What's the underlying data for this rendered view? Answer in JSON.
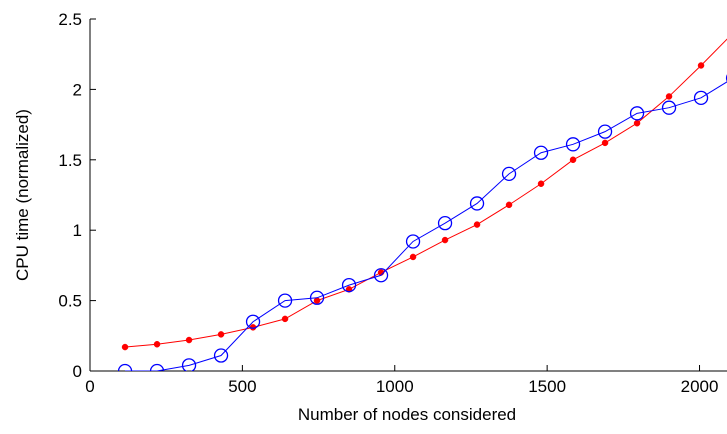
{
  "chart_data": {
    "type": "line",
    "title": "",
    "xlabel": "Number of nodes considered",
    "ylabel": "CPU time (normalized)",
    "xlim": [
      0,
      2100
    ],
    "ylim": [
      0,
      2.5
    ],
    "xticks": [
      0,
      500,
      1000,
      1500,
      2000
    ],
    "xtick_labels": [
      "0",
      "500",
      "1000",
      "1500",
      "2000"
    ],
    "yticks": [
      0,
      0.5,
      1,
      1.5,
      2,
      2.5
    ],
    "ytick_labels": [
      "0",
      "0.5",
      "1",
      "1.5",
      "2",
      "2.5"
    ],
    "grid": false,
    "series": [
      {
        "color": "#ff0000",
        "marker": "dot",
        "x": [
          115,
          220,
          325,
          430,
          535,
          640,
          745,
          850,
          955,
          1060,
          1165,
          1270,
          1375,
          1480,
          1585,
          1690,
          1795,
          1900,
          2005,
          2110
        ],
        "y": [
          0.17,
          0.19,
          0.22,
          0.26,
          0.31,
          0.37,
          0.5,
          0.58,
          0.7,
          0.81,
          0.93,
          1.04,
          1.18,
          1.33,
          1.5,
          1.62,
          1.76,
          1.95,
          2.17,
          2.4
        ]
      },
      {
        "color": "#0000ff",
        "marker": "circle",
        "x": [
          115,
          220,
          325,
          430,
          535,
          640,
          745,
          850,
          955,
          1060,
          1165,
          1270,
          1375,
          1480,
          1585,
          1690,
          1795,
          1900,
          2005,
          2110
        ],
        "y": [
          0.0,
          0.0,
          0.04,
          0.11,
          0.35,
          0.5,
          0.52,
          0.61,
          0.68,
          0.92,
          1.05,
          1.19,
          1.4,
          1.55,
          1.61,
          1.7,
          1.83,
          1.87,
          1.94,
          2.08
        ]
      }
    ]
  }
}
